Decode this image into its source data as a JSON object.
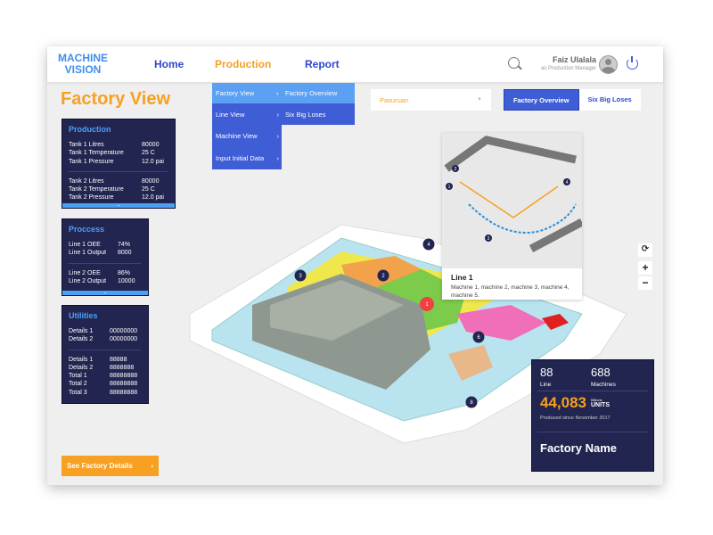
{
  "header": {
    "logo": [
      "MACHINE",
      "VISION"
    ],
    "nav": [
      "Home",
      "Production",
      "Report"
    ],
    "active_nav": "Production",
    "user_name": "Faiz Ulalala",
    "user_role": "as Production Manager"
  },
  "page_title": "Factory View",
  "menu": {
    "level1": [
      "Factory View",
      "Line View",
      "Machine View",
      "Input Initial Data"
    ],
    "level2": [
      "Factory Overview",
      "Six Big Loses"
    ]
  },
  "location_select": {
    "value": "Pasuruan"
  },
  "view_tabs": [
    {
      "label": "Factory Overview",
      "active": true
    },
    {
      "label": "Six Big Loses",
      "active": false
    }
  ],
  "panels": {
    "production": {
      "title": "Production",
      "groups": [
        [
          [
            "Tank 1 Litres",
            "80000"
          ],
          [
            "Tank 1 Temperature",
            "25 C"
          ],
          [
            "Tank 1 Pressure",
            "12.0 pai"
          ]
        ],
        [
          [
            "Tank 2 Litres",
            "80000"
          ],
          [
            "Tank 2 Temperature",
            "25 C"
          ],
          [
            "Tank 2 Pressure",
            "12.0 pai"
          ]
        ]
      ]
    },
    "process": {
      "title": "Proccess",
      "groups": [
        [
          [
            "Line 1 OEE",
            "74%"
          ],
          [
            "Line 1 Output",
            "8000"
          ]
        ],
        [
          [
            "Line 2 OEE",
            "86%"
          ],
          [
            "Line 2 Output",
            "10000"
          ]
        ]
      ]
    },
    "utilities": {
      "title": "Utilities",
      "groups": [
        [
          [
            "Details 1",
            "00000000"
          ],
          [
            "Details 2",
            "00000000"
          ]
        ],
        [
          [
            "Details 1",
            "88888"
          ],
          [
            "Details 2",
            "8888888"
          ],
          [
            "Total 1",
            "88888888"
          ],
          [
            "Total 2",
            "88888888"
          ],
          [
            "Total 3",
            "88888888"
          ]
        ]
      ]
    }
  },
  "map_markers": [
    "1",
    "2",
    "3",
    "4",
    "6",
    "8"
  ],
  "inset": {
    "title": "Line 1",
    "desc": "Machine 1, machine 2, machine 3, machine 4, machine 5.",
    "markers": [
      "1",
      "2",
      "3",
      "4"
    ]
  },
  "zoom_controls": {
    "plus": "+",
    "minus": "−"
  },
  "stats": {
    "line_value": "88",
    "line_label": "Line",
    "machines_value": "688",
    "machines_label": "Machines",
    "units_value": "44,083",
    "units_scale": "Billions",
    "units_label": "UNITS",
    "since": "Produced since November 2017",
    "factory_name": "Factory Name"
  },
  "cta": {
    "label": "See Factory Details",
    "arrow": "›"
  },
  "colors": {
    "accent": "#f7a021",
    "primary": "#2e47d0",
    "panel": "#212550",
    "panel_title": "#4fa0f5",
    "marker": "#212550",
    "marker_active": "#f04040"
  }
}
